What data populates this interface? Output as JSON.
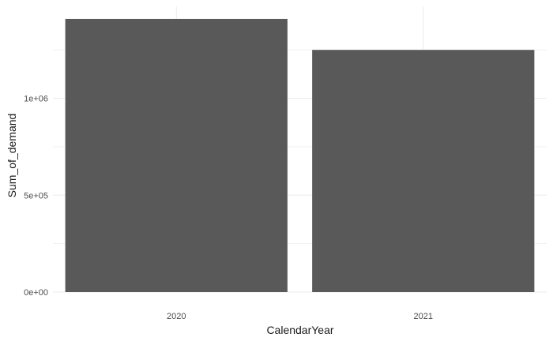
{
  "chart_data": {
    "type": "bar",
    "categories": [
      "2020",
      "2021"
    ],
    "values": [
      1410000,
      1250000
    ],
    "title": "",
    "xlabel": "CalendarYear",
    "ylabel": "Sum_of_demand",
    "ylim": [
      0,
      1475000
    ],
    "yticks": [
      0,
      500000,
      1000000
    ],
    "ytick_labels": [
      "0e+00",
      "5e+05",
      "1e+06"
    ],
    "grid": true,
    "bar_color": "#595959",
    "grid_color": "#ebebeb"
  }
}
